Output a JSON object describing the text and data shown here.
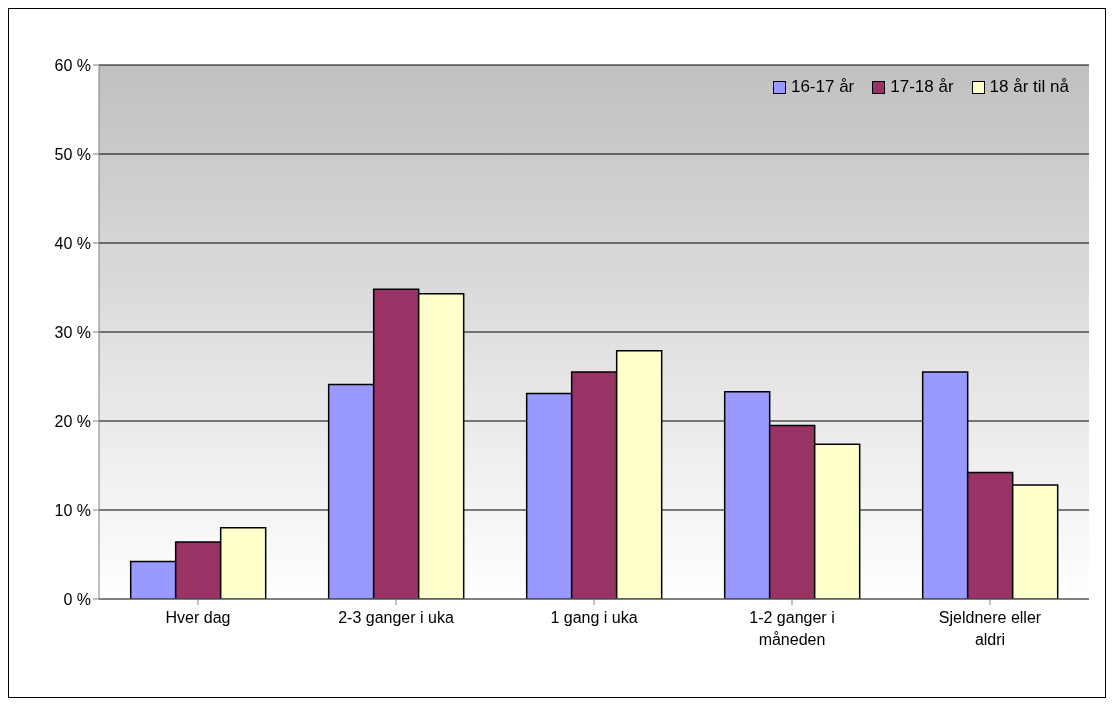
{
  "chart_data": {
    "type": "bar",
    "categories": [
      "Hver dag",
      "2-3 ganger i uka",
      "1 gang i uka",
      "1-2 ganger i måneden",
      "Sjeldnere eller aldri"
    ],
    "series": [
      {
        "name": "16-17 år",
        "color": "#9999ff",
        "values": [
          4.2,
          24.1,
          23.1,
          23.3,
          25.5
        ]
      },
      {
        "name": "17-18 år",
        "color": "#993366",
        "values": [
          6.4,
          34.8,
          25.5,
          19.5,
          14.2
        ]
      },
      {
        "name": "18 år til nå",
        "color": "#ffffcc",
        "values": [
          8.0,
          34.3,
          27.9,
          17.4,
          12.8
        ]
      }
    ],
    "ylim": [
      0,
      60
    ],
    "yticks": [
      {
        "value": 0,
        "label": "0 %"
      },
      {
        "value": 10,
        "label": "10 %"
      },
      {
        "value": 20,
        "label": "20 %"
      },
      {
        "value": 30,
        "label": "30 %"
      },
      {
        "value": 40,
        "label": "40 %"
      },
      {
        "value": 50,
        "label": "50 %"
      },
      {
        "value": 60,
        "label": "60 %"
      }
    ],
    "grid": "y",
    "legend": "top right"
  }
}
